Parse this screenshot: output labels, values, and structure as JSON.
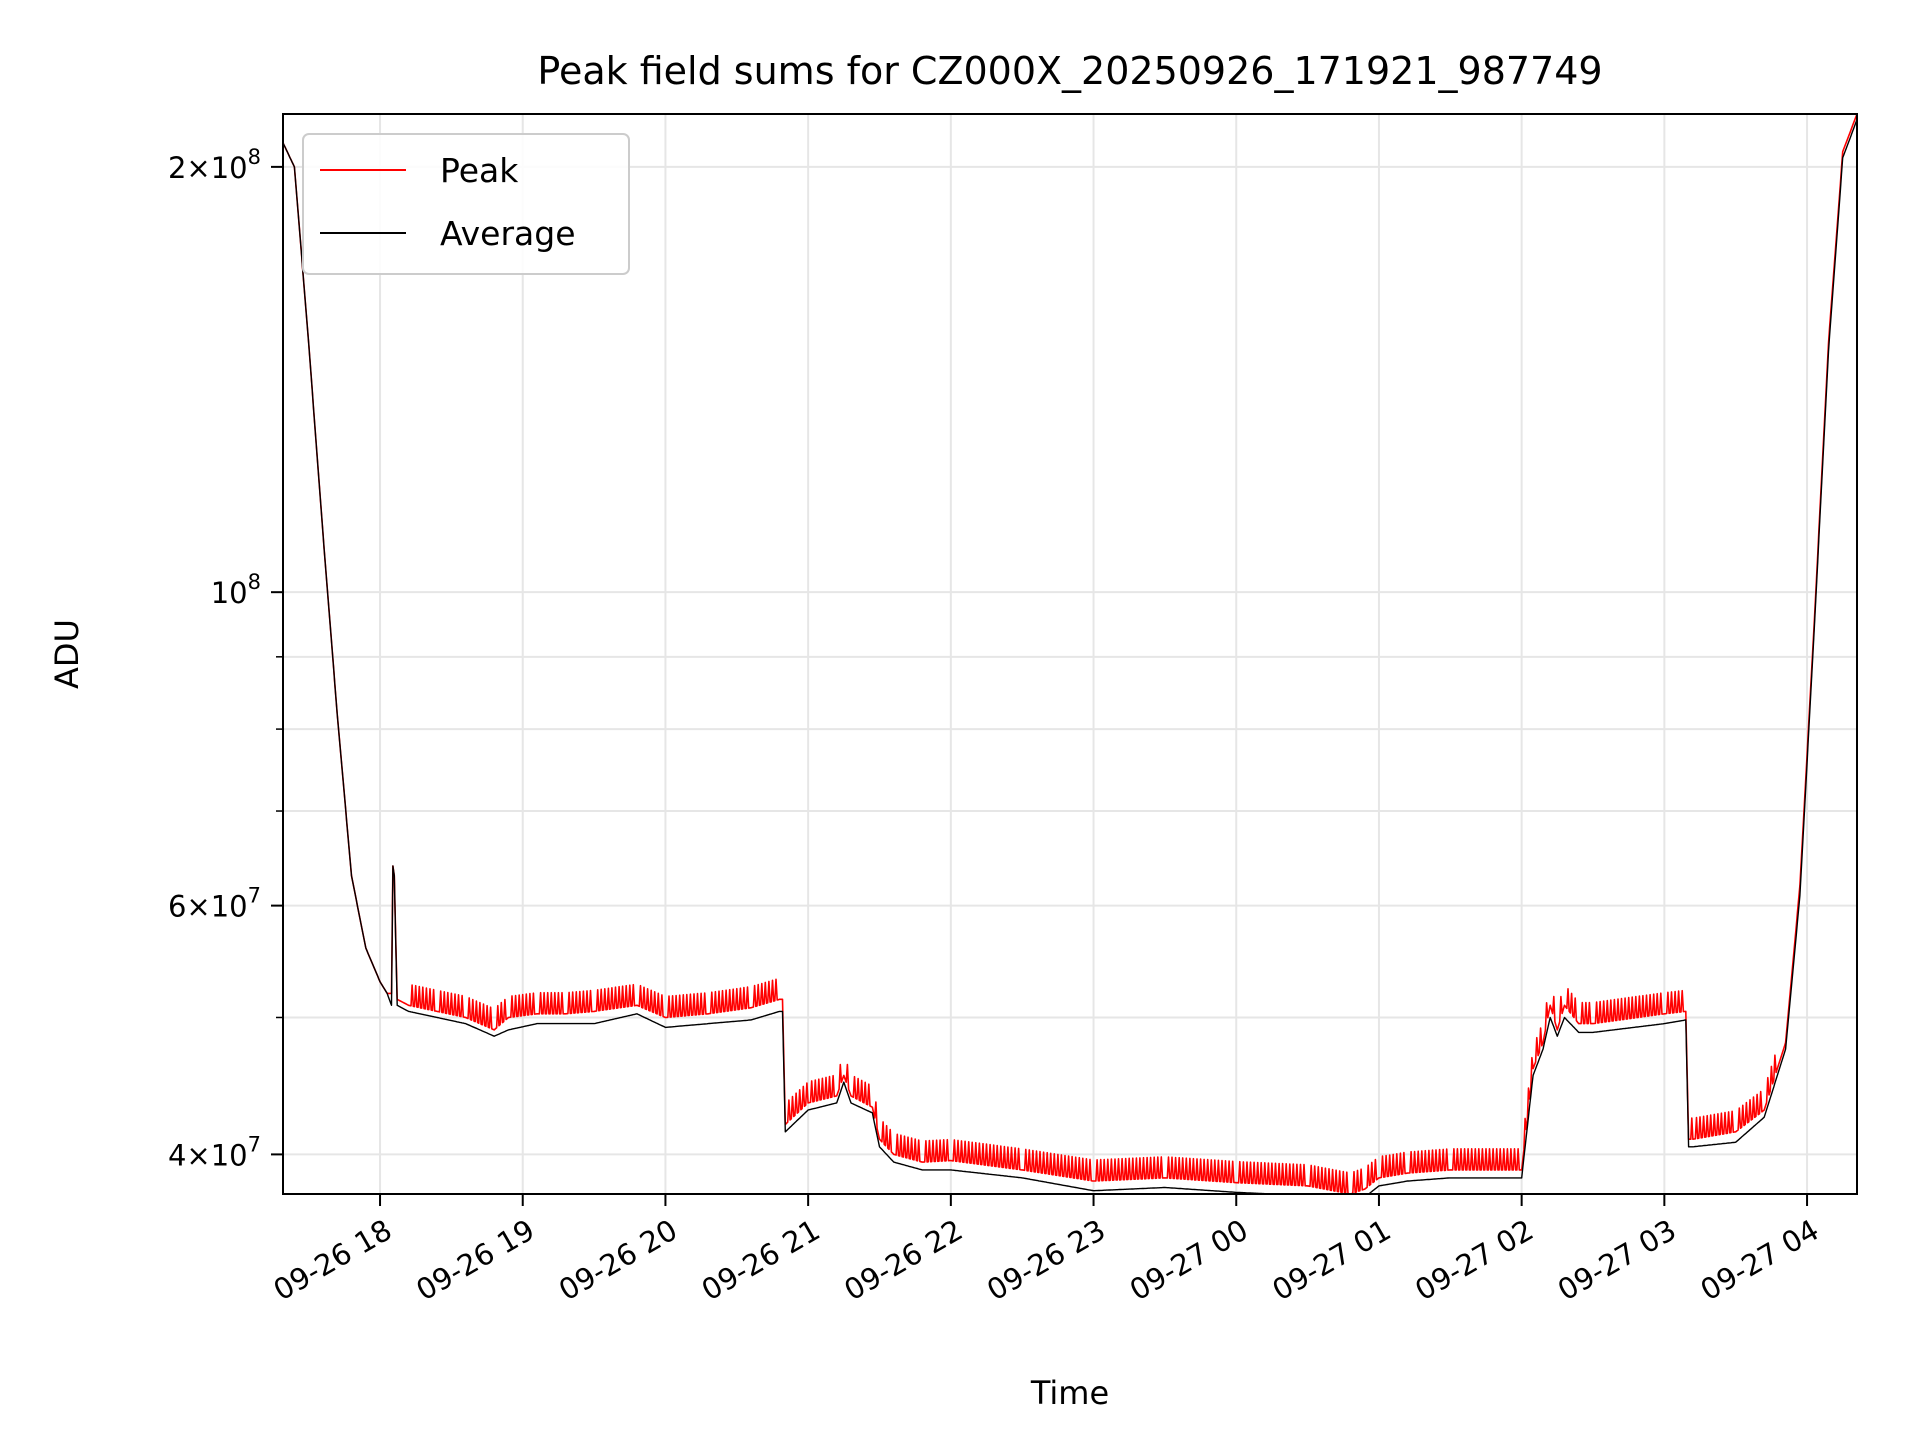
{
  "chart_data": {
    "type": "line",
    "title": "Peak field sums for CZ000X_20250926_171921_987749",
    "xlabel": "Time",
    "ylabel": "ADU",
    "yscale": "log",
    "ylim": [
      37500000,
      218000000
    ],
    "xlim_hours": [
      17.32,
      28.35
    ],
    "grid": true,
    "legend_position": "upper-left",
    "x_ticks": [
      {
        "hour": 18,
        "label": "09-26 18"
      },
      {
        "hour": 19,
        "label": "09-26 19"
      },
      {
        "hour": 20,
        "label": "09-26 20"
      },
      {
        "hour": 21,
        "label": "09-26 21"
      },
      {
        "hour": 22,
        "label": "09-26 22"
      },
      {
        "hour": 23,
        "label": "09-26 23"
      },
      {
        "hour": 24,
        "label": "09-27 00"
      },
      {
        "hour": 25,
        "label": "09-27 01"
      },
      {
        "hour": 26,
        "label": "09-27 02"
      },
      {
        "hour": 27,
        "label": "09-27 03"
      },
      {
        "hour": 28,
        "label": "09-27 04"
      }
    ],
    "y_ticks": [
      {
        "value": 40000000,
        "mant": "4",
        "exp": "7"
      },
      {
        "value": 60000000,
        "mant": "6",
        "exp": "7"
      },
      {
        "value": 100000000,
        "mant": "",
        "exp": "8"
      },
      {
        "value": 200000000,
        "mant": "2",
        "exp": "8"
      }
    ],
    "y_minor_ticks": [
      50000000,
      70000000,
      80000000,
      90000000
    ],
    "series": [
      {
        "name": "Peak",
        "color": "#ff0000",
        "spikes": true,
        "x": [
          17.32,
          17.4,
          17.5,
          17.6,
          17.7,
          17.8,
          17.9,
          18.0,
          18.05,
          18.08,
          18.09,
          18.1,
          18.12,
          18.2,
          18.4,
          18.6,
          18.8,
          18.9,
          19.1,
          19.3,
          19.5,
          19.8,
          20.0,
          20.3,
          20.6,
          20.8,
          20.82,
          20.84,
          21.0,
          21.2,
          21.25,
          21.3,
          21.45,
          21.5,
          21.6,
          21.8,
          22.0,
          22.5,
          23.0,
          23.5,
          24.0,
          24.5,
          24.8,
          24.9,
          25.0,
          25.2,
          25.5,
          26.0,
          26.08,
          26.15,
          26.2,
          26.25,
          26.3,
          26.4,
          26.5,
          27.0,
          27.15,
          27.17,
          27.2,
          27.5,
          27.7,
          27.85,
          27.95,
          28.05,
          28.15,
          28.25,
          28.35
        ],
        "y": [
          208000000,
          200000000,
          150000000,
          110000000,
          82000000,
          63000000,
          56000000,
          53000000,
          52000000,
          52000000,
          64000000,
          63000000,
          51500000,
          51000000,
          50500000,
          50000000,
          49000000,
          50000000,
          50300000,
          50300000,
          50500000,
          51000000,
          50000000,
          50300000,
          50800000,
          51500000,
          51500000,
          42000000,
          43500000,
          44000000,
          45500000,
          44000000,
          43200000,
          41000000,
          40000000,
          39500000,
          39600000,
          39000000,
          38300000,
          38500000,
          38200000,
          38000000,
          37500000,
          37800000,
          38500000,
          38800000,
          39000000,
          39000000,
          46000000,
          48000000,
          51000000,
          49000000,
          51000000,
          49500000,
          49500000,
          50300000,
          50500000,
          41000000,
          41000000,
          41500000,
          43000000,
          48000000,
          62000000,
          95000000,
          150000000,
          205000000,
          218000000
        ]
      },
      {
        "name": "Average",
        "color": "#000000",
        "spikes": false,
        "x": [
          17.32,
          17.4,
          17.5,
          17.6,
          17.7,
          17.8,
          17.9,
          18.0,
          18.05,
          18.08,
          18.09,
          18.1,
          18.12,
          18.2,
          18.4,
          18.6,
          18.8,
          18.9,
          19.1,
          19.3,
          19.5,
          19.8,
          20.0,
          20.3,
          20.6,
          20.8,
          20.82,
          20.84,
          21.0,
          21.2,
          21.25,
          21.3,
          21.45,
          21.5,
          21.6,
          21.8,
          22.0,
          22.5,
          23.0,
          23.5,
          24.0,
          24.5,
          24.8,
          24.9,
          25.0,
          25.2,
          25.5,
          26.0,
          26.08,
          26.15,
          26.2,
          26.25,
          26.3,
          26.4,
          26.5,
          27.0,
          27.15,
          27.17,
          27.2,
          27.5,
          27.7,
          27.85,
          27.95,
          28.05,
          28.15,
          28.25,
          28.35
        ],
        "y": [
          208000000,
          200000000,
          150000000,
          110000000,
          82000000,
          63000000,
          56000000,
          53000000,
          52000000,
          51000000,
          64000000,
          63000000,
          51000000,
          50500000,
          50000000,
          49500000,
          48500000,
          49000000,
          49500000,
          49500000,
          49500000,
          50300000,
          49200000,
          49500000,
          49800000,
          50500000,
          50500000,
          41500000,
          43000000,
          43500000,
          45000000,
          43500000,
          42800000,
          40500000,
          39500000,
          39000000,
          39000000,
          38500000,
          37700000,
          37900000,
          37600000,
          37400000,
          37200000,
          37300000,
          38000000,
          38300000,
          38500000,
          38500000,
          45500000,
          47500000,
          50000000,
          48500000,
          50000000,
          48800000,
          48800000,
          49500000,
          49800000,
          40500000,
          40500000,
          40800000,
          42500000,
          47500000,
          61000000,
          94000000,
          148000000,
          203000000,
          216000000
        ]
      }
    ]
  }
}
